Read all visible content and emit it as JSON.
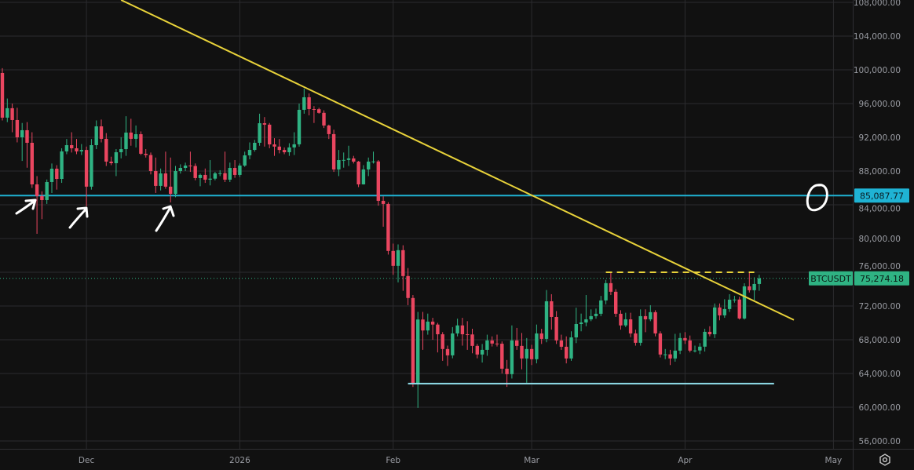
{
  "symbol": "BTCUSDT",
  "colors": {
    "background": "#111111",
    "grid": "#2b2b2e",
    "up": "#2fb383",
    "down": "#ea4660",
    "trendline": "#e8d23a",
    "resistance_line": "#1fb3d4",
    "support_line": "#8fdde8",
    "last_price": "#2fb383",
    "axis_text": "#9a9ca3"
  },
  "chart_data": {
    "type": "candlestick",
    "title": "",
    "xlabel": "",
    "ylabel": "",
    "ylim": [
      55000,
      108300
    ],
    "grid": true,
    "legend": "none",
    "y_ticks": [
      "108,000.00",
      "104,000.00",
      "100,000.00",
      "96,000.00",
      "92,000.00",
      "88,000.00",
      "84,000.00",
      "80,000.00",
      "76,000.00",
      "72,000.00",
      "68,000.00",
      "64,000.00",
      "60,000.00",
      "56,000.00"
    ],
    "x_ticks": [
      {
        "label": "Dec",
        "date": "2025-12-01"
      },
      {
        "label": "2026",
        "date": "2026-01-01"
      },
      {
        "label": "Feb",
        "date": "2026-02-01"
      },
      {
        "label": "Mar",
        "date": "2026-03-01"
      },
      {
        "label": "Apr",
        "date": "2026-04-01"
      },
      {
        "label": "May",
        "date": "2026-05-01"
      }
    ],
    "first_date": "2025-11-14",
    "candle_fields": [
      "open",
      "high",
      "low",
      "close"
    ],
    "candles": [
      [
        99630,
        100200,
        94000,
        94330
      ],
      [
        94330,
        96600,
        93800,
        95450
      ],
      [
        95450,
        96000,
        92600,
        94050
      ],
      [
        94050,
        95500,
        91400,
        92000
      ],
      [
        92000,
        93700,
        89200,
        92840
      ],
      [
        92840,
        93800,
        88400,
        91350
      ],
      [
        91350,
        92600,
        86000,
        86420
      ],
      [
        86420,
        87400,
        80560,
        85030
      ],
      [
        85030,
        85600,
        82300,
        84560
      ],
      [
        84560,
        87000,
        84100,
        86700
      ],
      [
        86700,
        88900,
        85400,
        88280
      ],
      [
        88280,
        88700,
        85800,
        87070
      ],
      [
        87070,
        90700,
        86600,
        90330
      ],
      [
        90330,
        91800,
        90000,
        91070
      ],
      [
        91070,
        92600,
        90200,
        90700
      ],
      [
        90700,
        91800,
        90000,
        90330
      ],
      [
        90330,
        91200,
        89900,
        90500
      ],
      [
        90500,
        90900,
        83820,
        86150
      ],
      [
        86150,
        91800,
        85800,
        91070
      ],
      [
        91070,
        94000,
        90600,
        93300
      ],
      [
        93300,
        94100,
        91400,
        91820
      ],
      [
        91820,
        92500,
        88600,
        89120
      ],
      [
        89120,
        89700,
        88700,
        88930
      ],
      [
        88930,
        90600,
        87400,
        90230
      ],
      [
        90230,
        92000,
        89500,
        90600
      ],
      [
        90600,
        94500,
        89800,
        92560
      ],
      [
        92560,
        94200,
        91000,
        91820
      ],
      [
        91820,
        93400,
        90800,
        92370
      ],
      [
        92370,
        92700,
        89900,
        90050
      ],
      [
        90050,
        90600,
        89600,
        89900
      ],
      [
        89900,
        90200,
        87600,
        88000
      ],
      [
        88000,
        89600,
        85400,
        86240
      ],
      [
        86240,
        88300,
        85700,
        87720
      ],
      [
        87720,
        90300,
        85900,
        86150
      ],
      [
        86150,
        89600,
        84280,
        85300
      ],
      [
        85300,
        88600,
        84900,
        88000
      ],
      [
        88000,
        88800,
        87700,
        88370
      ],
      [
        88370,
        89000,
        88000,
        88650
      ],
      [
        88650,
        90300,
        87900,
        88600
      ],
      [
        88600,
        88900,
        86900,
        87170
      ],
      [
        87170,
        87700,
        86200,
        87540
      ],
      [
        87540,
        88300,
        86600,
        86980
      ],
      [
        86980,
        89300,
        86300,
        87100
      ],
      [
        87100,
        87900,
        86900,
        87730
      ],
      [
        87730,
        88100,
        87400,
        87750
      ],
      [
        87750,
        90300,
        86700,
        86980
      ],
      [
        86980,
        89000,
        86700,
        88370
      ],
      [
        88370,
        89300,
        87200,
        87540
      ],
      [
        87540,
        88900,
        87300,
        88650
      ],
      [
        88650,
        90300,
        88500,
        89860
      ],
      [
        89860,
        91400,
        89400,
        90510
      ],
      [
        90510,
        91700,
        90300,
        91350
      ],
      [
        91350,
        94800,
        91000,
        93670
      ],
      [
        93670,
        94400,
        90900,
        93500
      ],
      [
        93500,
        93700,
        90700,
        91160
      ],
      [
        91160,
        91900,
        89800,
        90900
      ],
      [
        90900,
        91800,
        90100,
        90500
      ],
      [
        90500,
        90800,
        90000,
        90230
      ],
      [
        90230,
        91300,
        89800,
        90800
      ],
      [
        90800,
        92600,
        89900,
        91170
      ],
      [
        91170,
        96000,
        90900,
        95260
      ],
      [
        95260,
        97770,
        94800,
        96750
      ],
      [
        96750,
        97200,
        94600,
        95350
      ],
      [
        95350,
        95700,
        93700,
        95330
      ],
      [
        95330,
        95500,
        94800,
        94900
      ],
      [
        94900,
        95200,
        93100,
        93400
      ],
      [
        93400,
        93500,
        91800,
        92380
      ],
      [
        92380,
        92900,
        87900,
        88190
      ],
      [
        88190,
        90500,
        87400,
        89300
      ],
      [
        89300,
        90200,
        88400,
        89320
      ],
      [
        89320,
        91000,
        88600,
        89500
      ],
      [
        89500,
        89800,
        88900,
        89120
      ],
      [
        89120,
        89200,
        86100,
        86420
      ],
      [
        86420,
        88700,
        86400,
        88190
      ],
      [
        88190,
        89600,
        87400,
        89120
      ],
      [
        89120,
        90300,
        88900,
        89140
      ],
      [
        89140,
        89300,
        83900,
        84470
      ],
      [
        84470,
        85000,
        81400,
        84100
      ],
      [
        84100,
        84300,
        78100,
        78530
      ],
      [
        78530,
        79400,
        75700,
        76760
      ],
      [
        76760,
        79300,
        74800,
        78620
      ],
      [
        78620,
        79200,
        73800,
        75550
      ],
      [
        75550,
        76500,
        72100,
        72950
      ],
      [
        72950,
        73300,
        62400,
        62770
      ],
      [
        62770,
        71300,
        59920,
        70400
      ],
      [
        70400,
        71300,
        66800,
        69100
      ],
      [
        69100,
        71100,
        68600,
        70150
      ],
      [
        70150,
        70600,
        68000,
        69800
      ],
      [
        69800,
        70000,
        66500,
        68650
      ],
      [
        68650,
        68900,
        65500,
        66900
      ],
      [
        66900,
        67300,
        64900,
        66150
      ],
      [
        66150,
        69500,
        65800,
        68750
      ],
      [
        68750,
        70500,
        68400,
        69700
      ],
      [
        69700,
        70600,
        67300,
        68650
      ],
      [
        68650,
        70200,
        66800,
        68630
      ],
      [
        68630,
        69300,
        66400,
        67270
      ],
      [
        67270,
        67500,
        65800,
        66250
      ],
      [
        66250,
        67500,
        65300,
        66800
      ],
      [
        66800,
        68600,
        66100,
        67920
      ],
      [
        67920,
        68400,
        67200,
        67550
      ],
      [
        67550,
        68600,
        67200,
        67530
      ],
      [
        67530,
        67800,
        64000,
        64570
      ],
      [
        64570,
        65600,
        62410,
        63920
      ],
      [
        63920,
        69700,
        63400,
        67920
      ],
      [
        67920,
        69400,
        66800,
        67270
      ],
      [
        67270,
        68800,
        64500,
        65780
      ],
      [
        65780,
        68200,
        62900,
        66900
      ],
      [
        66900,
        67400,
        65000,
        65690
      ],
      [
        65690,
        69800,
        65200,
        68750
      ],
      [
        68750,
        69300,
        67500,
        68100
      ],
      [
        68100,
        73900,
        67700,
        72560
      ],
      [
        72560,
        73400,
        69200,
        70700
      ],
      [
        70700,
        71400,
        67500,
        67920
      ],
      [
        67920,
        68600,
        66800,
        67170
      ],
      [
        67170,
        68400,
        65200,
        65780
      ],
      [
        65780,
        69000,
        65500,
        68280
      ],
      [
        68280,
        71800,
        67600,
        69860
      ],
      [
        69860,
        71100,
        69000,
        70050
      ],
      [
        70050,
        73300,
        69600,
        70420
      ],
      [
        70420,
        71600,
        70200,
        70800
      ],
      [
        70800,
        71700,
        70500,
        71080
      ],
      [
        71080,
        73200,
        70800,
        72660
      ],
      [
        72660,
        75100,
        72200,
        74710
      ],
      [
        74710,
        76000,
        73300,
        73690
      ],
      [
        73690,
        74000,
        70700,
        71080
      ],
      [
        71080,
        71500,
        69200,
        69700
      ],
      [
        69700,
        71200,
        69500,
        70420
      ],
      [
        70420,
        71200,
        68300,
        68750
      ],
      [
        68750,
        69200,
        67300,
        67640
      ],
      [
        67640,
        71600,
        67300,
        70800
      ],
      [
        70800,
        71600,
        68900,
        70420
      ],
      [
        70420,
        72100,
        70200,
        71270
      ],
      [
        71270,
        71500,
        68400,
        68750
      ],
      [
        68750,
        69000,
        65900,
        66250
      ],
      [
        66250,
        66900,
        65700,
        66270
      ],
      [
        66270,
        66800,
        65000,
        65780
      ],
      [
        65780,
        68700,
        65400,
        66710
      ],
      [
        66710,
        68800,
        66300,
        68200
      ],
      [
        68200,
        68900,
        67500,
        67920
      ],
      [
        67920,
        68500,
        66500,
        66710
      ],
      [
        66710,
        67300,
        66500,
        66730
      ],
      [
        66730,
        67600,
        66300,
        67180
      ],
      [
        67180,
        69300,
        66600,
        68940
      ],
      [
        68940,
        69600,
        68400,
        68650
      ],
      [
        68650,
        72300,
        68200,
        71830
      ],
      [
        71830,
        72300,
        70300,
        70890
      ],
      [
        70890,
        72800,
        70600,
        71640
      ],
      [
        71640,
        73400,
        71300,
        72750
      ],
      [
        72750,
        73200,
        72400,
        72770
      ],
      [
        72770,
        73100,
        70400,
        70520
      ],
      [
        70520,
        74700,
        70400,
        74330
      ],
      [
        74330,
        75910,
        73600,
        73870
      ],
      [
        73870,
        75400,
        72700,
        74610
      ],
      [
        74610,
        75700,
        73800,
        75274.18
      ]
    ],
    "drawings": {
      "descending_trendline": {
        "from": [
          "2025-12-08",
          108280
        ],
        "to": [
          "2026-04-23",
          70350
        ]
      },
      "resistance_level": {
        "price": 85087.77,
        "label": "85,087.77"
      },
      "support_level": {
        "price": 62800,
        "from": "2026-02-04",
        "to": "2026-04-19"
      },
      "range_high_dashed": {
        "price": 76000,
        "from": "2026-03-16",
        "to": "2026-04-15"
      },
      "last_price": {
        "price": 75274.18,
        "label": "75,274.18",
        "symbol_label": "BTCUSDT"
      }
    }
  }
}
